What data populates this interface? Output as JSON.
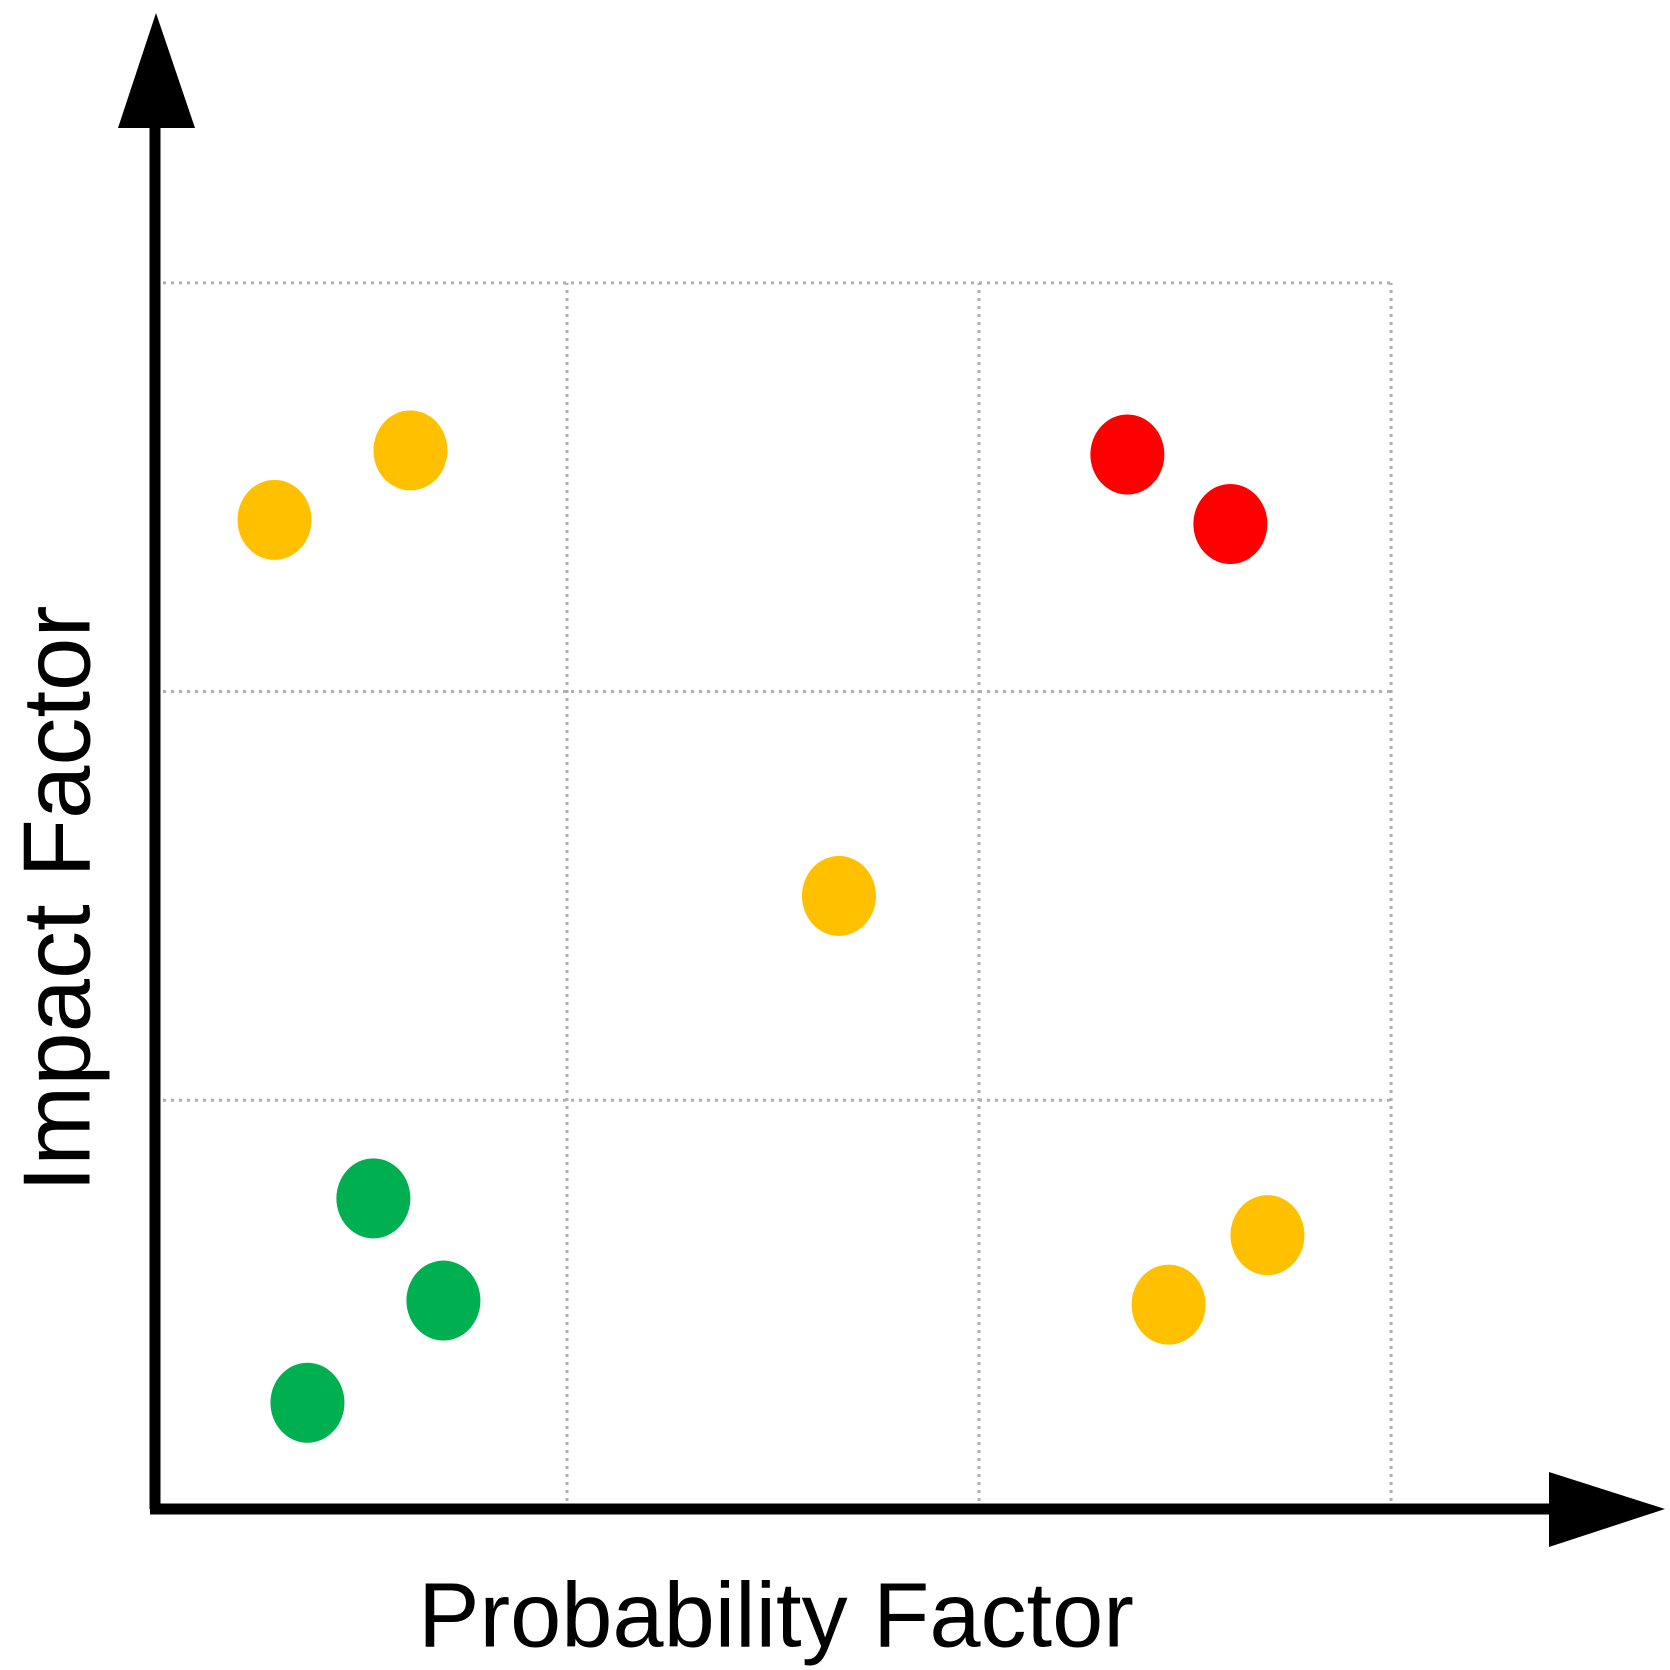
{
  "chart_data": {
    "type": "scatter",
    "x_label": "Probability Factor",
    "y_label": "Impact Factor",
    "xlim": [
      0,
      3.66
    ],
    "ylim": [
      0,
      3.67
    ],
    "xticks": [
      1,
      2,
      3
    ],
    "yticks": [
      1,
      2,
      3
    ],
    "grid": true,
    "series": [
      {
        "color": "#ffc000",
        "x": [
          0.29,
          0.62,
          1.66,
          2.7,
          2.46
        ],
        "values": [
          2.42,
          2.59,
          1.5,
          0.67,
          0.5
        ]
      },
      {
        "color": "#ff0000",
        "x": [
          2.36,
          2.61
        ],
        "values": [
          2.58,
          2.41
        ]
      },
      {
        "color": "#00b050",
        "x": [
          0.53,
          0.7,
          0.37
        ],
        "values": [
          0.76,
          0.51,
          0.26
        ]
      }
    ]
  }
}
